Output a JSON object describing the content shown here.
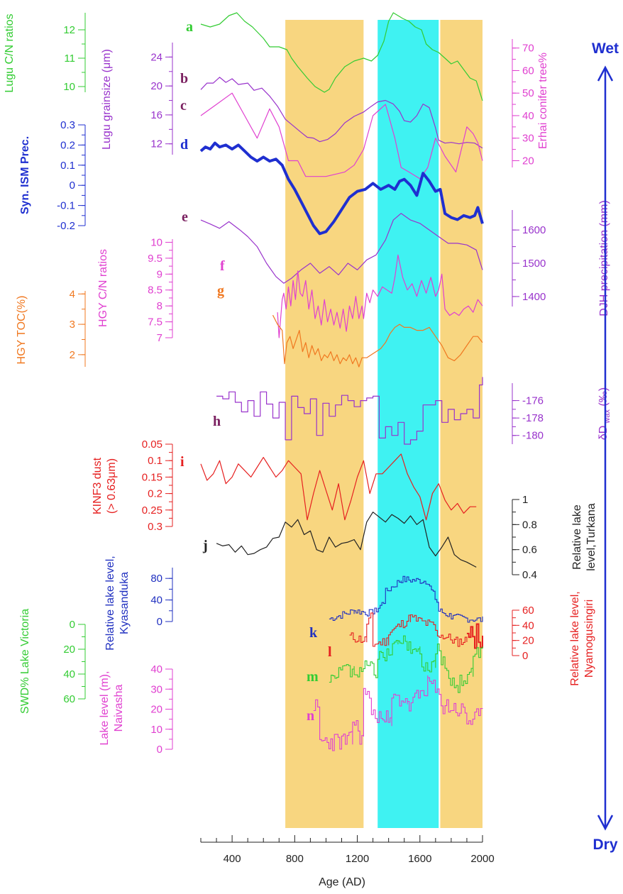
{
  "chart_data": {
    "type": "line",
    "x_axis": {
      "label": "Age (AD)",
      "ticks": [
        400,
        800,
        1200,
        1600,
        2000
      ],
      "range": [
        200,
        2000
      ]
    },
    "shading": [
      {
        "name": "period-1",
        "from": 740,
        "to": 1240,
        "color": "#f8d680"
      },
      {
        "name": "period-2",
        "from": 1330,
        "to": 1720,
        "color": "#3ff2f2"
      },
      {
        "name": "period-3",
        "from": 1730,
        "to": 2000,
        "color": "#f8d680"
      }
    ],
    "arrow": {
      "top": "Wet",
      "bottom": "Dry",
      "color": "#1f2fd0"
    },
    "axes": [
      {
        "id": "a",
        "name": "Lugu C/N ratios",
        "side": "left",
        "color": "#33cc33",
        "ticks": [
          10,
          11,
          12
        ]
      },
      {
        "id": "b",
        "name": "Lugu grainsize (μm)",
        "side": "left",
        "color": "#9933cc",
        "ticks": [
          12,
          16,
          20,
          24
        ]
      },
      {
        "id": "c",
        "name": "Erhai conifer tree%",
        "side": "right",
        "color": "#e040d0",
        "ticks": [
          20,
          30,
          40,
          50,
          60,
          70
        ]
      },
      {
        "id": "d",
        "name": "Syn. ISM Prec.",
        "side": "left",
        "color": "#1f2fd0",
        "ticks": [
          -0.2,
          -0.1,
          0,
          0.1,
          0.2,
          0.3
        ]
      },
      {
        "id": "e",
        "name": "DJH precipitation (mm)",
        "side": "right",
        "color": "#9933cc",
        "ticks": [
          1400,
          1500,
          1600
        ]
      },
      {
        "id": "f",
        "name": "HGY C/N ratios",
        "side": "left",
        "color": "#e040d0",
        "ticks": [
          7,
          7.5,
          8,
          8.5,
          9,
          9.5,
          10
        ]
      },
      {
        "id": "g",
        "name": "HGY TOC(%)",
        "side": "left",
        "color": "#f07820",
        "ticks": [
          2,
          3,
          4
        ]
      },
      {
        "id": "h",
        "name": "δD wax (‰)",
        "side": "right",
        "color": "#9933cc",
        "ticks": [
          -180,
          -178,
          -176
        ]
      },
      {
        "id": "i",
        "name": "KINF3 dust (> 0.63μm)",
        "side": "left",
        "color": "#e62020",
        "ticks": [
          0.05,
          0.1,
          0.15,
          0.2,
          0.25,
          0.3
        ]
      },
      {
        "id": "j",
        "name": "Relative lake level,Turkana",
        "side": "right",
        "color": "#222222",
        "ticks": [
          0.4,
          0.6,
          0.8,
          1
        ]
      },
      {
        "id": "k",
        "name": "Relative lake level, Kyasanduka",
        "side": "left",
        "color": "#2030c0",
        "ticks": [
          0,
          40,
          80
        ]
      },
      {
        "id": "l",
        "name": "Relative lake level, Nyamogusingiri",
        "side": "right",
        "color": "#e62020",
        "ticks": [
          0,
          20,
          40,
          60
        ]
      },
      {
        "id": "m",
        "name": "SWD% Lake Victoria",
        "side": "left",
        "color": "#33cc33",
        "ticks": [
          0,
          20,
          40,
          60
        ]
      },
      {
        "id": "n",
        "name": "Lake level (m), Naivasha",
        "side": "left",
        "color": "#e040d0",
        "ticks": [
          0,
          10,
          20,
          30,
          40
        ]
      }
    ],
    "series": [
      {
        "id": "a",
        "name": "Lugu C/N ratios",
        "x": [
          200,
          260,
          320,
          380,
          430,
          480,
          530,
          600,
          640,
          700,
          750,
          780,
          820,
          880,
          930,
          990,
          1020,
          1060,
          1120,
          1180,
          1240,
          1290,
          1330,
          1370,
          1400,
          1430,
          1460,
          1490,
          1530,
          1570,
          1610,
          1640,
          1680,
          1720,
          1760,
          1800,
          1840,
          1880,
          1920,
          1960,
          2000
        ],
        "y": [
          12.2,
          12.1,
          12.2,
          12.5,
          12.6,
          12.3,
          12.1,
          11.7,
          11.4,
          11.4,
          11.3,
          11.0,
          10.7,
          10.3,
          10.0,
          9.8,
          9.9,
          10.3,
          10.7,
          10.9,
          11.0,
          10.9,
          11.1,
          11.6,
          12.3,
          12.6,
          12.5,
          12.4,
          12.3,
          12.1,
          12.0,
          11.5,
          11.3,
          11.2,
          11.0,
          10.8,
          10.9,
          10.6,
          10.3,
          10.2,
          9.5
        ]
      },
      {
        "id": "b",
        "name": "Lugu grainsize",
        "x": [
          200,
          240,
          280,
          320,
          360,
          400,
          440,
          500,
          540,
          590,
          640,
          690,
          740,
          790,
          840,
          880,
          920,
          960,
          1010,
          1060,
          1120,
          1180,
          1240,
          1290,
          1330,
          1380,
          1430,
          1470,
          1500,
          1540,
          1580,
          1620,
          1660,
          1700,
          1720,
          1760,
          1800,
          1850,
          1900,
          1950,
          2000
        ],
        "y": [
          19.5,
          20.4,
          20.4,
          21.2,
          20.5,
          21.0,
          20.2,
          20.4,
          19.4,
          19.7,
          18.6,
          17.2,
          15.4,
          14.5,
          13.6,
          12.9,
          12.8,
          12.3,
          12.6,
          13.4,
          14.9,
          15.8,
          16.4,
          17.2,
          17.8,
          18.0,
          17.5,
          16.5,
          15.2,
          15.0,
          15.9,
          17.5,
          17.0,
          14.2,
          12.5,
          12.1,
          12.2,
          12.0,
          12.2,
          12.1,
          11.4
        ]
      },
      {
        "id": "c",
        "name": "Erhai conifer tree%",
        "x": [
          200,
          300,
          400,
          480,
          560,
          640,
          700,
          760,
          820,
          870,
          1000,
          1120,
          1180,
          1240,
          1300,
          1380,
          1440,
          1480,
          1530,
          1600,
          1650,
          1700,
          1760,
          1830,
          1900,
          1940,
          1970,
          2000
        ],
        "y": [
          40,
          45,
          50,
          40,
          30,
          43,
          35,
          20,
          20,
          13,
          13,
          15,
          18,
          25,
          40,
          45,
          30,
          17,
          15,
          12,
          17,
          30,
          22,
          15,
          35,
          32,
          28,
          20
        ]
      },
      {
        "id": "d",
        "name": "Syn. ISM Prec.",
        "x": [
          200,
          230,
          260,
          290,
          320,
          360,
          400,
          440,
          480,
          520,
          560,
          600,
          640,
          680,
          720,
          760,
          800,
          840,
          880,
          920,
          960,
          1000,
          1050,
          1100,
          1150,
          1200,
          1250,
          1300,
          1350,
          1400,
          1440,
          1470,
          1500,
          1540,
          1580,
          1620,
          1660,
          1700,
          1730,
          1760,
          1800,
          1840,
          1880,
          1920,
          1950,
          1970,
          2000
        ],
        "y": [
          0.17,
          0.19,
          0.18,
          0.21,
          0.19,
          0.2,
          0.18,
          0.2,
          0.17,
          0.14,
          0.12,
          0.14,
          0.12,
          0.13,
          0.1,
          0.03,
          -0.02,
          -0.08,
          -0.14,
          -0.2,
          -0.24,
          -0.23,
          -0.18,
          -0.12,
          -0.06,
          -0.03,
          -0.02,
          0.01,
          -0.02,
          0.0,
          -0.02,
          0.02,
          0.03,
          0.0,
          -0.05,
          0.06,
          0.02,
          -0.03,
          -0.02,
          -0.14,
          -0.16,
          -0.17,
          -0.15,
          -0.16,
          -0.15,
          -0.11,
          -0.19
        ]
      },
      {
        "id": "e",
        "name": "DJH precipitation",
        "x": [
          200,
          260,
          320,
          380,
          450,
          500,
          560,
          620,
          680,
          730,
          780,
          840,
          900,
          960,
          1020,
          1080,
          1140,
          1200,
          1260,
          1320,
          1380,
          1430,
          1480,
          1540,
          1600,
          1660,
          1720,
          1780,
          1840,
          1900,
          1960,
          2000
        ],
        "y": [
          1630,
          1618,
          1605,
          1625,
          1600,
          1580,
          1550,
          1500,
          1460,
          1440,
          1455,
          1480,
          1500,
          1470,
          1490,
          1465,
          1500,
          1480,
          1510,
          1525,
          1570,
          1630,
          1650,
          1630,
          1620,
          1600,
          1580,
          1560,
          1560,
          1555,
          1540,
          1480
        ]
      },
      {
        "id": "f",
        "name": "HGY C/N ratios",
        "x": [
          690,
          700,
          710,
          720,
          730,
          745,
          760,
          775,
          790,
          805,
          820,
          835,
          850,
          870,
          890,
          910,
          930,
          950,
          970,
          990,
          1010,
          1030,
          1050,
          1070,
          1090,
          1110,
          1130,
          1150,
          1170,
          1190,
          1210,
          1230,
          1240,
          1260,
          1280,
          1300,
          1330,
          1360,
          1390,
          1420,
          1440,
          1460,
          1490,
          1520,
          1550,
          1580,
          1610,
          1640,
          1670,
          1700,
          1720,
          1740,
          1760,
          1790,
          1820,
          1850,
          1880,
          1910,
          1940,
          1970,
          2000
        ],
        "y": [
          7.8,
          7.0,
          7.6,
          8.2,
          8.4,
          7.9,
          8.6,
          8.0,
          8.8,
          8.2,
          9.1,
          8.4,
          8.3,
          8.8,
          7.9,
          8.5,
          7.6,
          8.0,
          7.4,
          8.2,
          7.5,
          7.9,
          7.4,
          7.8,
          7.3,
          7.9,
          7.2,
          8.0,
          7.6,
          8.3,
          7.6,
          8.0,
          7.6,
          8.4,
          8.1,
          8.5,
          8.3,
          8.6,
          8.5,
          8.4,
          8.9,
          9.6,
          8.9,
          8.5,
          8.7,
          8.3,
          8.8,
          8.4,
          8.9,
          8.3,
          8.5,
          9.0,
          7.9,
          7.7,
          7.8,
          7.7,
          7.9,
          8.0,
          7.8,
          8.2,
          8.0
        ]
      },
      {
        "id": "g",
        "name": "HGY TOC",
        "x": [
          660,
          690,
          720,
          735,
          750,
          770,
          790,
          810,
          830,
          850,
          870,
          890,
          910,
          930,
          950,
          970,
          990,
          1010,
          1030,
          1050,
          1070,
          1090,
          1110,
          1130,
          1150,
          1170,
          1190,
          1210,
          1230,
          1260,
          1290,
          1320,
          1350,
          1380,
          1410,
          1440,
          1470,
          1500,
          1540,
          1580,
          1620,
          1660,
          1700,
          1740,
          1780,
          1820,
          1860,
          1900,
          1940,
          1970,
          2000
        ],
        "y": [
          3.3,
          3.0,
          2.8,
          1.7,
          2.4,
          2.6,
          2.2,
          2.5,
          2.8,
          2.1,
          2.4,
          1.9,
          2.3,
          2.0,
          2.2,
          1.8,
          2.0,
          1.9,
          2.1,
          1.8,
          2.0,
          1.7,
          1.9,
          1.8,
          2.0,
          1.7,
          1.9,
          1.6,
          1.9,
          1.9,
          2.0,
          2.1,
          2.2,
          2.4,
          2.7,
          2.9,
          3.0,
          2.9,
          2.9,
          2.8,
          2.8,
          2.9,
          2.6,
          2.3,
          1.9,
          1.8,
          2.0,
          2.3,
          2.6,
          2.6,
          2.4
        ]
      },
      {
        "id": "h",
        "name": "δD wax",
        "x": [
          300,
          340,
          380,
          420,
          460,
          500,
          540,
          580,
          620,
          660,
          700,
          740,
          780,
          820,
          860,
          900,
          940,
          980,
          1020,
          1060,
          1100,
          1140,
          1180,
          1220,
          1260,
          1300,
          1340,
          1380,
          1420,
          1460,
          1500,
          1540,
          1580,
          1620,
          1660,
          1700,
          1740,
          1780,
          1820,
          1860,
          1900,
          1940,
          1980,
          2000
        ],
        "y": [
          -175.5,
          -175.8,
          -175.0,
          -176.2,
          -177.3,
          -176.0,
          -177.8,
          -175.0,
          -176.4,
          -178.0,
          -176.2,
          -180.5,
          -175.5,
          -176.8,
          -177.5,
          -175.8,
          -180.0,
          -176.3,
          -177.8,
          -176.5,
          -175.4,
          -176.0,
          -176.7,
          -176.0,
          -175.7,
          -175.5,
          -180.3,
          -179.0,
          -180.0,
          -178.5,
          -181.0,
          -180.5,
          -179.5,
          -176.5,
          -176.5,
          -176.0,
          -178.5,
          -177.0,
          -178.2,
          -177.5,
          -177.0,
          -178.0,
          -174.2,
          -173.3
        ]
      },
      {
        "id": "i",
        "name": "KINF3 dust",
        "x": [
          200,
          240,
          280,
          320,
          360,
          400,
          440,
          480,
          520,
          560,
          600,
          640,
          680,
          720,
          760,
          800,
          840,
          880,
          920,
          960,
          1000,
          1040,
          1080,
          1120,
          1160,
          1200,
          1240,
          1280,
          1320,
          1360,
          1400,
          1440,
          1480,
          1520,
          1560,
          1600,
          1640,
          1680,
          1720,
          1760,
          1800,
          1840,
          1880,
          1920,
          1960
        ],
        "y": [
          0.11,
          0.16,
          0.14,
          0.1,
          0.17,
          0.15,
          0.11,
          0.13,
          0.15,
          0.12,
          0.09,
          0.12,
          0.15,
          0.13,
          0.1,
          0.12,
          0.14,
          0.28,
          0.2,
          0.13,
          0.19,
          0.25,
          0.17,
          0.28,
          0.22,
          0.15,
          0.1,
          0.2,
          0.14,
          0.14,
          0.12,
          0.1,
          0.08,
          0.14,
          0.18,
          0.21,
          0.28,
          0.2,
          0.17,
          0.22,
          0.25,
          0.23,
          0.26,
          0.24,
          0.24
        ]
      },
      {
        "id": "j",
        "name": "Relative lake level, Turkana",
        "x": [
          300,
          340,
          380,
          420,
          460,
          500,
          540,
          580,
          620,
          660,
          700,
          740,
          780,
          820,
          860,
          900,
          940,
          980,
          1020,
          1060,
          1100,
          1140,
          1180,
          1220,
          1260,
          1300,
          1340,
          1380,
          1420,
          1460,
          1500,
          1540,
          1580,
          1620,
          1660,
          1700,
          1740,
          1780,
          1820,
          1860,
          1900,
          1960
        ],
        "y": [
          0.65,
          0.63,
          0.64,
          0.58,
          0.63,
          0.56,
          0.57,
          0.6,
          0.62,
          0.69,
          0.7,
          0.82,
          0.78,
          0.84,
          0.72,
          0.75,
          0.6,
          0.58,
          0.7,
          0.62,
          0.65,
          0.66,
          0.68,
          0.6,
          0.82,
          0.9,
          0.86,
          0.82,
          0.88,
          0.85,
          0.81,
          0.87,
          0.8,
          0.84,
          0.62,
          0.55,
          0.62,
          0.7,
          0.56,
          0.52,
          0.5,
          0.46
        ]
      }
    ]
  }
}
